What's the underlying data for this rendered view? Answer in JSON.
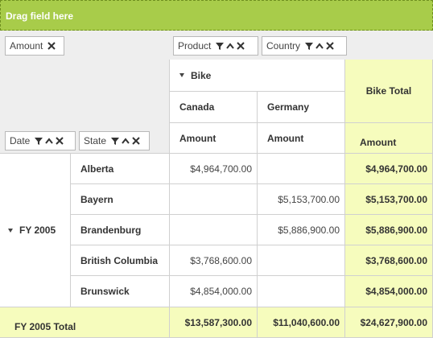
{
  "dropzone": {
    "label": "Drag field here"
  },
  "filter_chips": {
    "amount": "Amount",
    "product": "Product",
    "country": "Country",
    "date": "Date",
    "state": "State"
  },
  "columns": {
    "group": "Bike",
    "countries": [
      "Canada",
      "Germany"
    ],
    "measure": "Amount",
    "total": "Bike Total"
  },
  "row_group": "FY 2005",
  "rows": [
    {
      "state": "Alberta",
      "canada": "$4,964,700.00",
      "germany": "",
      "total": "$4,964,700.00"
    },
    {
      "state": "Bayern",
      "canada": "",
      "germany": "$5,153,700.00",
      "total": "$5,153,700.00"
    },
    {
      "state": "Brandenburg",
      "canada": "",
      "germany": "$5,886,900.00",
      "total": "$5,886,900.00"
    },
    {
      "state": "British Columbia",
      "canada": "$3,768,600.00",
      "germany": "",
      "total": "$3,768,600.00"
    },
    {
      "state": "Brunswick",
      "canada": "$4,854,000.00",
      "germany": "",
      "total": "$4,854,000.00"
    }
  ],
  "grand_total": {
    "label": "FY 2005 Total",
    "canada": "$13,587,300.00",
    "germany": "$11,040,600.00",
    "total": "$24,627,900.00"
  },
  "icons": [
    "filter-icon",
    "sort-up-icon",
    "remove-icon"
  ]
}
